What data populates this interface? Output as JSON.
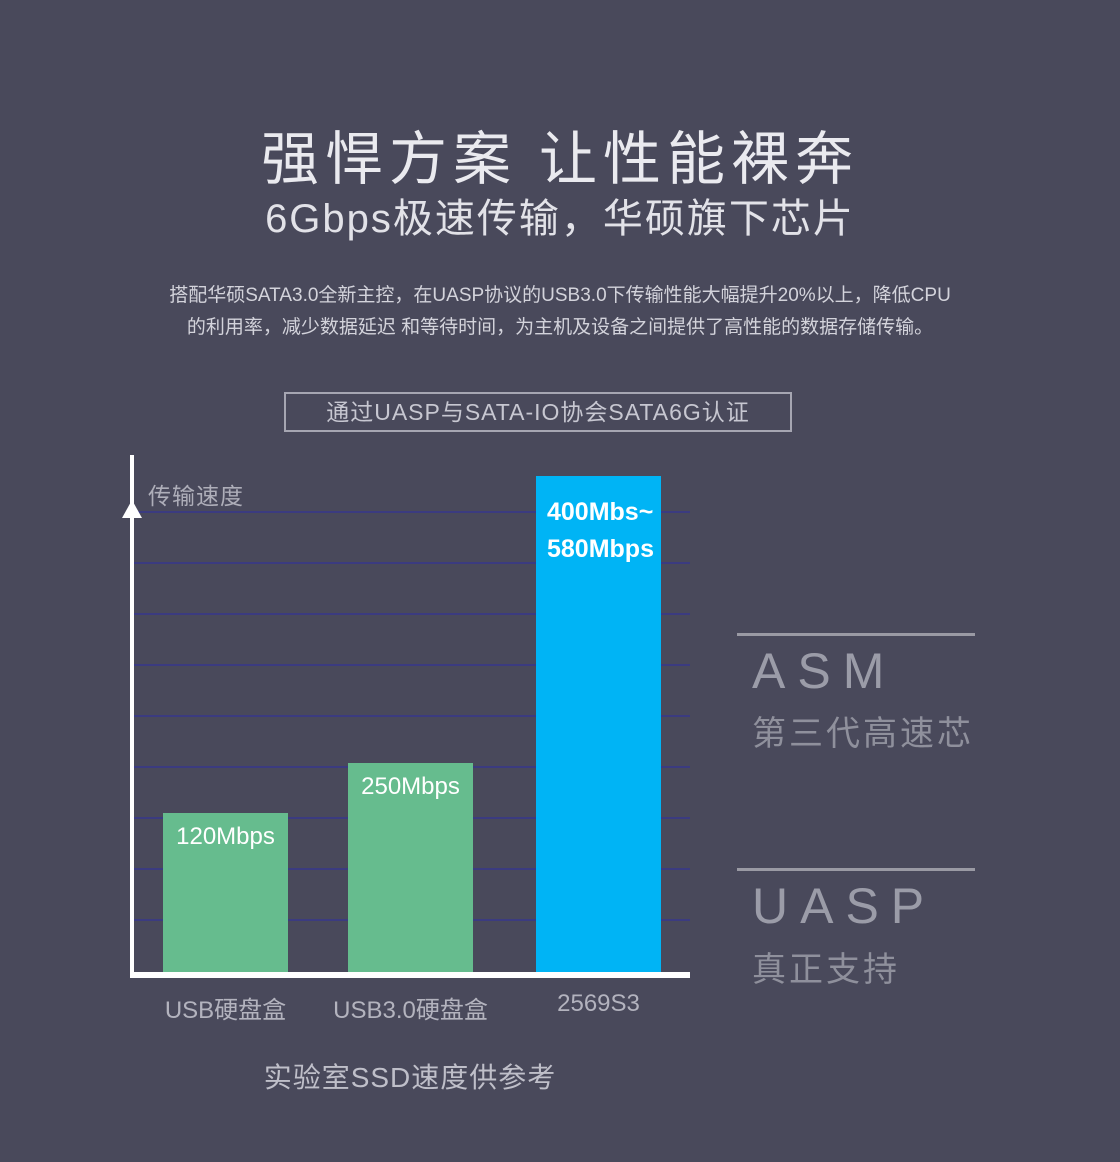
{
  "page": {
    "title": "强悍方案 让性能裸奔",
    "subtitle": "6Gbps极速传输，华硕旗下芯片",
    "description_line1": "搭配华硕SATA3.0全新主控，在UASP协议的USB3.0下传输性能大幅提升20%以上，降低CPU",
    "description_line2": "的利用率，减少数据延迟 和等待时间，为主机及设备之间提供了高性能的数据存储传输。",
    "certification_badge": "通过UASP与SATA-IO协会SATA6G认证",
    "background_color": "#49495b"
  },
  "chart_data": {
    "type": "bar",
    "ylabel": "传输速度",
    "categories": [
      "USB硬盘盒",
      "USB3.0硬盘盒",
      "2569S3"
    ],
    "values": [
      120,
      250,
      490
    ],
    "grid": true,
    "gridline_color": "#3b3b80",
    "axis_color": "#ffffff",
    "caption": "实验室SSD速度供参考",
    "bars": [
      {
        "label": "120Mbps",
        "value_mbps": 120,
        "category": "USB硬盘盒",
        "color": "#66bc8e"
      },
      {
        "label": "250Mbps",
        "value_mbps": 250,
        "category": "USB3.0硬盘盒",
        "color": "#66bc8e"
      },
      {
        "label_line1": "400Mbs~",
        "label_line2": "580Mbps",
        "value_range_mbps": [
          400,
          580
        ],
        "category": "2569S3",
        "color": "#00b4f5"
      }
    ]
  },
  "highlights": [
    {
      "heading": "ASM",
      "subheading": "第三代高速芯"
    },
    {
      "heading": "UASP",
      "subheading": "真正支持"
    }
  ]
}
